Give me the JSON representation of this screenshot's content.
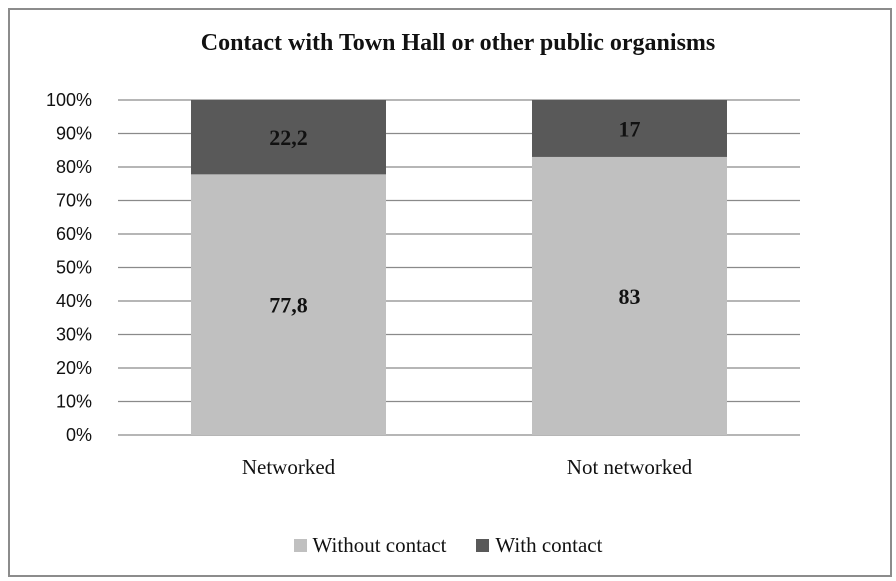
{
  "chart_data": {
    "type": "bar",
    "stacked": true,
    "title": "Contact with Town Hall or other public organisms",
    "categories": [
      "Networked",
      "Not networked"
    ],
    "series": [
      {
        "name": "Without contact",
        "values": [
          77.8,
          83
        ],
        "labels": [
          "77,8",
          "83"
        ],
        "color": "#c0c0c0"
      },
      {
        "name": "With contact",
        "values": [
          22.2,
          17
        ],
        "labels": [
          "22,2",
          "17"
        ],
        "color": "#595959"
      }
    ],
    "yticks": [
      "0%",
      "10%",
      "20%",
      "30%",
      "40%",
      "50%",
      "60%",
      "70%",
      "80%",
      "90%",
      "100%"
    ],
    "ylim": [
      0,
      100
    ],
    "grid": true,
    "legend_position": "bottom"
  }
}
